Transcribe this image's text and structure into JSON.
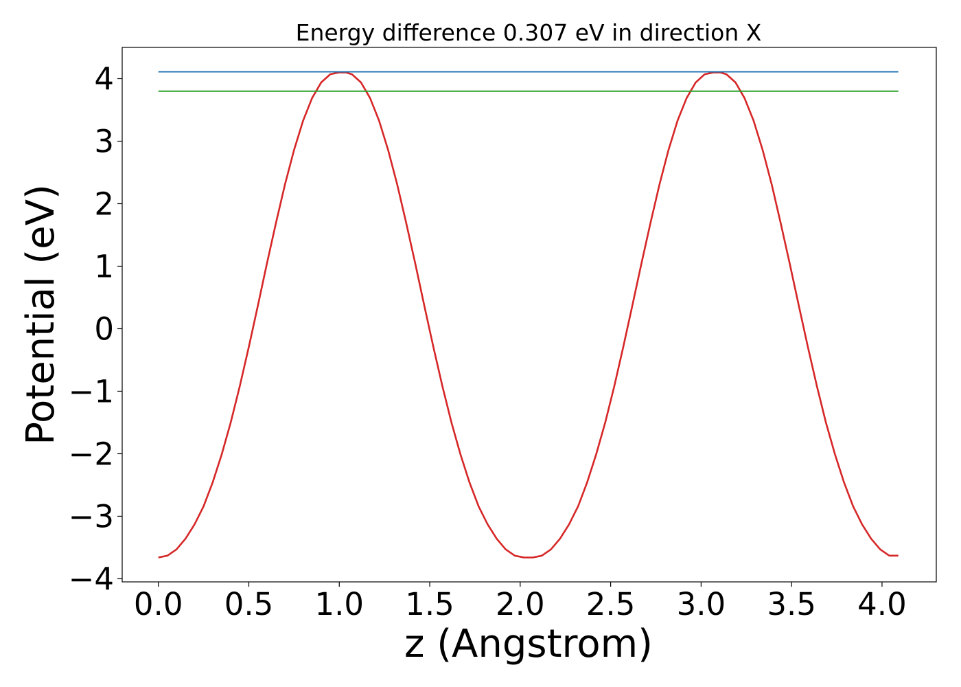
{
  "chart_data": {
    "type": "line",
    "title": "Energy difference 0.307 eV in direction X",
    "xlabel": "z (Angstrom)",
    "ylabel": "Potential (eV)",
    "xlim": [
      -0.2,
      4.3
    ],
    "ylim": [
      -4.05,
      4.5
    ],
    "xticks": [
      0.0,
      0.5,
      1.0,
      1.5,
      2.0,
      2.5,
      3.0,
      3.5,
      4.0
    ],
    "xtick_labels": [
      "0.0",
      "0.5",
      "1.0",
      "1.5",
      "2.0",
      "2.5",
      "3.0",
      "3.5",
      "4.0"
    ],
    "yticks": [
      -4,
      -3,
      -2,
      -1,
      0,
      1,
      2,
      3,
      4
    ],
    "ytick_labels": [
      "−4",
      "−3",
      "−2",
      "−1",
      "0",
      "1",
      "2",
      "3",
      "4"
    ],
    "grid": false,
    "legend": false,
    "series": [
      {
        "color": "#d62728",
        "x": [
          0.0,
          0.05,
          0.1,
          0.15,
          0.2,
          0.25,
          0.3,
          0.35,
          0.4,
          0.45,
          0.5,
          0.55,
          0.6,
          0.65,
          0.7,
          0.75,
          0.8,
          0.85,
          0.9,
          0.95,
          1.0,
          1.035,
          1.07,
          1.12,
          1.17,
          1.22,
          1.27,
          1.32,
          1.37,
          1.42,
          1.47,
          1.52,
          1.57,
          1.62,
          1.67,
          1.72,
          1.77,
          1.82,
          1.87,
          1.92,
          1.97,
          2.02,
          2.07,
          2.12,
          2.17,
          2.22,
          2.27,
          2.32,
          2.37,
          2.42,
          2.47,
          2.52,
          2.57,
          2.62,
          2.67,
          2.72,
          2.77,
          2.82,
          2.87,
          2.92,
          2.97,
          3.02,
          3.07,
          3.105,
          3.14,
          3.19,
          3.24,
          3.29,
          3.34,
          3.39,
          3.44,
          3.49,
          3.54,
          3.59,
          3.64,
          3.69,
          3.74,
          3.79,
          3.84,
          3.89,
          3.94,
          3.99,
          4.04,
          4.09
        ],
        "y": [
          -3.66,
          -3.63,
          -3.53,
          -3.36,
          -3.13,
          -2.84,
          -2.46,
          -2.01,
          -1.5,
          -0.92,
          -0.29,
          0.37,
          1.04,
          1.69,
          2.31,
          2.86,
          3.33,
          3.69,
          3.94,
          4.07,
          4.1,
          4.1,
          4.07,
          3.94,
          3.69,
          3.33,
          2.86,
          2.31,
          1.69,
          1.04,
          0.37,
          -0.29,
          -0.92,
          -1.5,
          -2.01,
          -2.46,
          -2.84,
          -3.13,
          -3.36,
          -3.53,
          -3.63,
          -3.66,
          -3.66,
          -3.63,
          -3.53,
          -3.36,
          -3.13,
          -2.84,
          -2.46,
          -2.01,
          -1.5,
          -0.92,
          -0.29,
          0.37,
          1.04,
          1.69,
          2.31,
          2.86,
          3.33,
          3.69,
          3.94,
          4.07,
          4.1,
          4.1,
          4.07,
          3.94,
          3.69,
          3.33,
          2.86,
          2.31,
          1.69,
          1.04,
          0.37,
          -0.29,
          -0.92,
          -1.5,
          -2.01,
          -2.46,
          -2.84,
          -3.13,
          -3.36,
          -3.53,
          -3.63,
          -3.63
        ]
      },
      {
        "color": "#1f77b4",
        "x": [
          0.0,
          4.09
        ],
        "y": [
          4.11,
          4.11
        ]
      },
      {
        "color": "#2ca02c",
        "x": [
          0.0,
          4.09
        ],
        "y": [
          3.8,
          3.8
        ]
      }
    ]
  }
}
